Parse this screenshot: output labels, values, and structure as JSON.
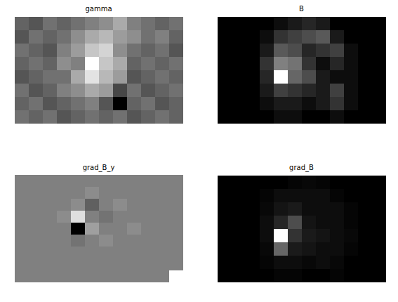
{
  "chart_data": [
    {
      "type": "heatmap",
      "title": "gamma",
      "tick_labels": false,
      "cells": [
        [
          0.45,
          0.4,
          0.5,
          0.45,
          0.5,
          0.55,
          0.6,
          0.7,
          0.55,
          0.5,
          0.45,
          0.5
        ],
        [
          0.4,
          0.5,
          0.45,
          0.5,
          0.6,
          0.7,
          0.75,
          0.65,
          0.6,
          0.5,
          0.55,
          0.45
        ],
        [
          0.5,
          0.45,
          0.4,
          0.55,
          0.65,
          0.8,
          0.85,
          0.6,
          0.5,
          0.45,
          0.5,
          0.4
        ],
        [
          0.45,
          0.5,
          0.45,
          0.6,
          0.55,
          1.0,
          0.8,
          0.7,
          0.45,
          0.5,
          0.45,
          0.5
        ],
        [
          0.4,
          0.45,
          0.5,
          0.5,
          0.7,
          0.9,
          0.75,
          0.65,
          0.4,
          0.45,
          0.5,
          0.45
        ],
        [
          0.5,
          0.4,
          0.45,
          0.55,
          0.6,
          0.7,
          0.65,
          0.35,
          0.5,
          0.4,
          0.45,
          0.5
        ],
        [
          0.45,
          0.5,
          0.4,
          0.45,
          0.5,
          0.55,
          0.4,
          0.1,
          0.45,
          0.5,
          0.4,
          0.45
        ],
        [
          0.5,
          0.45,
          0.5,
          0.4,
          0.45,
          0.5,
          0.45,
          0.5,
          0.4,
          0.45,
          0.5,
          0.45
        ]
      ]
    },
    {
      "type": "heatmap",
      "title": "B",
      "tick_labels": false,
      "cells": [
        [
          0,
          0,
          0,
          0,
          0.05,
          0.1,
          0.15,
          0.1,
          0,
          0,
          0,
          0
        ],
        [
          0,
          0,
          0,
          0.05,
          0.2,
          0.25,
          0.3,
          0.35,
          0.1,
          0,
          0,
          0
        ],
        [
          0,
          0,
          0,
          0.1,
          0.35,
          0.3,
          0.15,
          0.2,
          0.25,
          0.05,
          0,
          0
        ],
        [
          0,
          0,
          0,
          0.2,
          0.5,
          0.45,
          0.2,
          0.05,
          0.15,
          0.05,
          0,
          0
        ],
        [
          0,
          0,
          0,
          0.15,
          1.0,
          0.4,
          0.3,
          0.1,
          0.05,
          0.05,
          0,
          0
        ],
        [
          0,
          0,
          0,
          0.1,
          0.25,
          0.2,
          0.15,
          0.1,
          0.25,
          0.05,
          0,
          0
        ],
        [
          0,
          0,
          0,
          0.05,
          0.1,
          0.1,
          0.05,
          0.1,
          0.2,
          0.05,
          0,
          0
        ],
        [
          0,
          0,
          0,
          0,
          0.05,
          0.05,
          0,
          0,
          0.05,
          0,
          0,
          0
        ]
      ]
    },
    {
      "type": "heatmap",
      "title": "grad_B_y",
      "tick_labels": false,
      "cells": [
        [
          0.5,
          0.5,
          0.5,
          0.5,
          0.5,
          0.5,
          0.5,
          0.5,
          0.5,
          0.5,
          0.5,
          0.5
        ],
        [
          0.5,
          0.5,
          0.5,
          0.5,
          0.5,
          0.52,
          0.5,
          0.5,
          0.5,
          0.5,
          0.5,
          0.5
        ],
        [
          0.5,
          0.5,
          0.5,
          0.5,
          0.52,
          0.45,
          0.5,
          0.52,
          0.5,
          0.5,
          0.5,
          0.5
        ],
        [
          0.5,
          0.5,
          0.5,
          0.52,
          0.65,
          0.5,
          0.48,
          0.5,
          0.5,
          0.5,
          0.5,
          0.5
        ],
        [
          0.5,
          0.5,
          0.5,
          0.5,
          0.3,
          0.55,
          0.5,
          0.5,
          0.52,
          0.5,
          0.5,
          0.5
        ],
        [
          0.5,
          0.5,
          0.5,
          0.5,
          0.48,
          0.5,
          0.52,
          0.5,
          0.5,
          0.5,
          0.5,
          0.5
        ],
        [
          0.5,
          0.5,
          0.5,
          0.5,
          0.5,
          0.5,
          0.5,
          0.5,
          0.5,
          0.5,
          0.5,
          0.5
        ],
        [
          0.5,
          0.5,
          0.5,
          0.5,
          0.5,
          0.5,
          0.5,
          0.5,
          0.5,
          0.5,
          0.5,
          0.5
        ],
        [
          0.5,
          0.5,
          0.5,
          0.5,
          0.5,
          0.5,
          0.5,
          0.5,
          0.5,
          0.5,
          0.5,
          0.7
        ]
      ]
    },
    {
      "type": "heatmap",
      "title": "grad_B",
      "tick_labels": false,
      "cells": [
        [
          0,
          0,
          0,
          0,
          0,
          0.02,
          0.03,
          0.02,
          0,
          0,
          0,
          0
        ],
        [
          0,
          0,
          0,
          0.02,
          0.05,
          0.05,
          0.05,
          0.05,
          0.02,
          0,
          0,
          0
        ],
        [
          0,
          0,
          0,
          0.03,
          0.08,
          0.1,
          0.05,
          0.05,
          0.05,
          0.02,
          0,
          0
        ],
        [
          0,
          0,
          0,
          0.05,
          0.15,
          0.3,
          0.08,
          0.05,
          0.05,
          0.02,
          0,
          0
        ],
        [
          0,
          0,
          0,
          0.05,
          1.0,
          0.2,
          0.1,
          0.08,
          0.05,
          0.03,
          0,
          0
        ],
        [
          0,
          0,
          0,
          0.03,
          0.4,
          0.1,
          0.08,
          0.05,
          0.05,
          0.02,
          0,
          0
        ],
        [
          0,
          0,
          0,
          0.02,
          0.05,
          0.05,
          0.03,
          0.05,
          0.03,
          0,
          0,
          0
        ],
        [
          0,
          0,
          0,
          0,
          0.02,
          0.02,
          0,
          0,
          0.02,
          0,
          0,
          0
        ]
      ]
    }
  ]
}
